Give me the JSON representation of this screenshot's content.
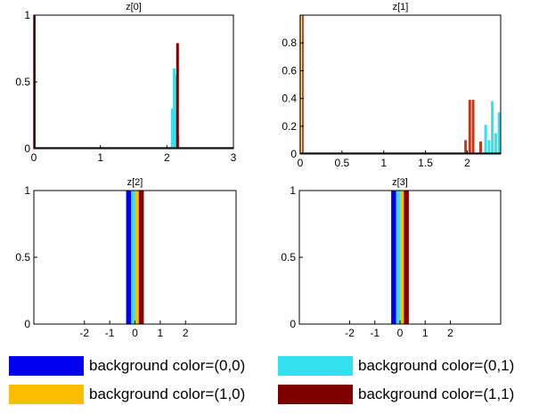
{
  "chart_data": [
    {
      "type": "bar",
      "title": "z[0]",
      "xlim": [
        0,
        3
      ],
      "ylim": [
        0,
        1
      ],
      "xticks": [
        "0",
        "1",
        "2",
        "3"
      ],
      "yticks": [
        "0",
        "0.5",
        "1"
      ],
      "series": [
        {
          "color_key": "0,0",
          "x": [
            0.0
          ],
          "values": [
            1.0
          ]
        },
        {
          "color_key": "0,1",
          "x": [
            2.08,
            2.11,
            2.14,
            2.17
          ],
          "values": [
            0.3,
            0.6,
            0.55,
            0.1
          ]
        },
        {
          "color_key": "1,0",
          "x": [
            0.0
          ],
          "values": [
            1.0
          ]
        },
        {
          "color_key": "1,1",
          "x": [
            0.0,
            2.16
          ],
          "values": [
            1.0,
            0.79
          ]
        }
      ]
    },
    {
      "type": "bar",
      "title": "z[1]",
      "xlim": [
        0,
        2.4
      ],
      "ylim": [
        0,
        1
      ],
      "xticks": [
        "0",
        "0.5",
        "1",
        "1.5",
        "2"
      ],
      "yticks": [
        "0",
        "0.2",
        "0.4",
        "0.6",
        "0.8"
      ],
      "series": [
        {
          "color_key": "0,0",
          "x": [
            0.0
          ],
          "values": [
            1.0
          ]
        },
        {
          "color_key": "0,1",
          "x": [
            2.22,
            2.26,
            2.3,
            2.34,
            2.38
          ],
          "values": [
            0.21,
            0.1,
            0.38,
            0.15,
            0.3
          ]
        },
        {
          "color_key": "1,0",
          "x": [
            0.0
          ],
          "values": [
            1.0
          ]
        },
        {
          "color_key": "1,1",
          "x": [
            0.02,
            1.98,
            2.03,
            2.07,
            2.16
          ],
          "values": [
            1.0,
            0.1,
            0.39,
            0.39,
            0.09
          ]
        }
      ]
    },
    {
      "type": "area",
      "title": "z[2]",
      "xlim": [
        -4,
        4
      ],
      "ylim": [
        0,
        1
      ],
      "xticks": [
        "-2",
        "-1",
        "0",
        "1",
        "2"
      ],
      "yticks": [
        "0",
        "0.5",
        "1"
      ],
      "bands": [
        {
          "color_key": "0,0",
          "from": -0.35,
          "to": -0.15
        },
        {
          "color_key": "0,1",
          "from": -0.15,
          "to": 0.0
        },
        {
          "color_key": "1,0",
          "from": 0.0,
          "to": 0.15
        },
        {
          "color_key": "1,1",
          "from": 0.15,
          "to": 0.35
        }
      ]
    },
    {
      "type": "area",
      "title": "z[3]",
      "xlim": [
        -4,
        4
      ],
      "ylim": [
        0,
        1
      ],
      "xticks": [
        "-2",
        "-1",
        "0",
        "1",
        "2"
      ],
      "yticks": [
        "0",
        "0.5",
        "1"
      ],
      "bands": [
        {
          "color_key": "0,0",
          "from": -0.35,
          "to": -0.15
        },
        {
          "color_key": "0,1",
          "from": -0.15,
          "to": 0.0
        },
        {
          "color_key": "1,0",
          "from": 0.0,
          "to": 0.15
        },
        {
          "color_key": "1,1",
          "from": 0.15,
          "to": 0.35
        }
      ]
    }
  ],
  "legend": [
    {
      "key": "0,0",
      "label": "background color=(0,0)",
      "color": "#0000f0"
    },
    {
      "key": "0,1",
      "label": "background color=(0,1)",
      "color": "#33e0ee"
    },
    {
      "key": "1,0",
      "label": "background color=(1,0)",
      "color": "#fdbd00"
    },
    {
      "key": "1,1",
      "label": "background color=(1,1)",
      "color": "#800000"
    }
  ],
  "colors": {
    "0,0": "#0000f0",
    "0,1": "#33e0ee",
    "1,0": "#fdbd00",
    "1,1": "#800000",
    "z1_red": "#c0391b"
  }
}
